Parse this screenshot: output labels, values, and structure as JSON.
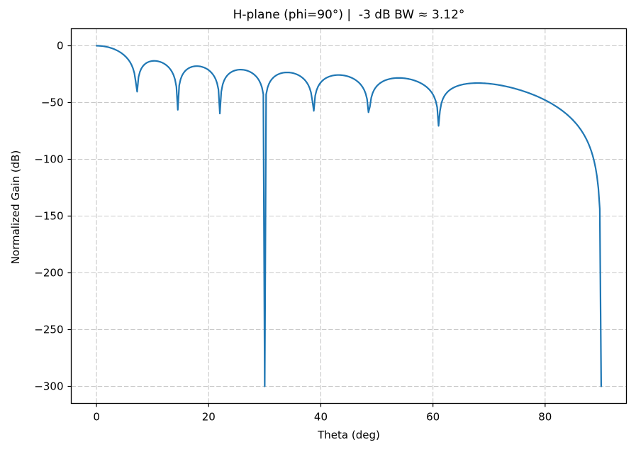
{
  "chart_data": {
    "type": "line",
    "title": "H-plane (phi=90°) |  -3 dB BW ≈ 3.12°",
    "xlabel": "Theta (deg)",
    "ylabel": "Normalized Gain (dB)",
    "xlim": [
      -4.5,
      94.5
    ],
    "ylim": [
      -315,
      15
    ],
    "xticks": [
      0,
      20,
      40,
      60,
      80
    ],
    "xtick_labels": [
      "0",
      "20",
      "40",
      "60",
      "80"
    ],
    "yticks": [
      0,
      -50,
      -100,
      -150,
      -200,
      -250,
      -300
    ],
    "ytick_labels": [
      "0",
      "−50",
      "−100",
      "−150",
      "−200",
      "−250",
      "−300"
    ],
    "grid": {
      "visible": true,
      "style": "dashed",
      "color": "#c8c8c8"
    },
    "background_color": "#ffffff",
    "spine_color": "#000000",
    "line": {
      "color": "#1f77b4",
      "width": 2.2
    },
    "series": [
      {
        "name": "normalized-gain",
        "model": {
          "kind": "uniform_linear_array_factor_times_cos_element",
          "n_elements": 16,
          "element_spacing_wavelengths": 0.5,
          "theta_start_deg": 0,
          "theta_end_deg": 90,
          "theta_step_deg": 0.25,
          "floor_db": -300
        },
        "key_points": {
          "main_lobe_peak": {
            "theta_deg": 0,
            "gain_db": 0
          },
          "minus3db_beamwidth_deg": 3.12,
          "nulls_deg": [
            7.18,
            14.48,
            22.02,
            30.0,
            38.68,
            48.59,
            61.04,
            90.0
          ],
          "nulls_reaching_floor_deg": [
            30.0,
            90.0
          ],
          "rendered_null_depths_db": [
            -41,
            -56,
            -60,
            -300,
            -58,
            -64,
            -71,
            -300
          ],
          "sidelobe_peaks": [
            {
              "theta_deg": 10.7,
              "gain_db": -13.4
            },
            {
              "theta_deg": 18.0,
              "gain_db": -18.2
            },
            {
              "theta_deg": 25.9,
              "gain_db": -21.6
            },
            {
              "theta_deg": 34.2,
              "gain_db": -24.5
            },
            {
              "theta_deg": 43.2,
              "gain_db": -27.2
            },
            {
              "theta_deg": 53.9,
              "gain_db": -29.9
            },
            {
              "theta_deg": 69.6,
              "gain_db": -33.2
            }
          ]
        }
      }
    ]
  }
}
